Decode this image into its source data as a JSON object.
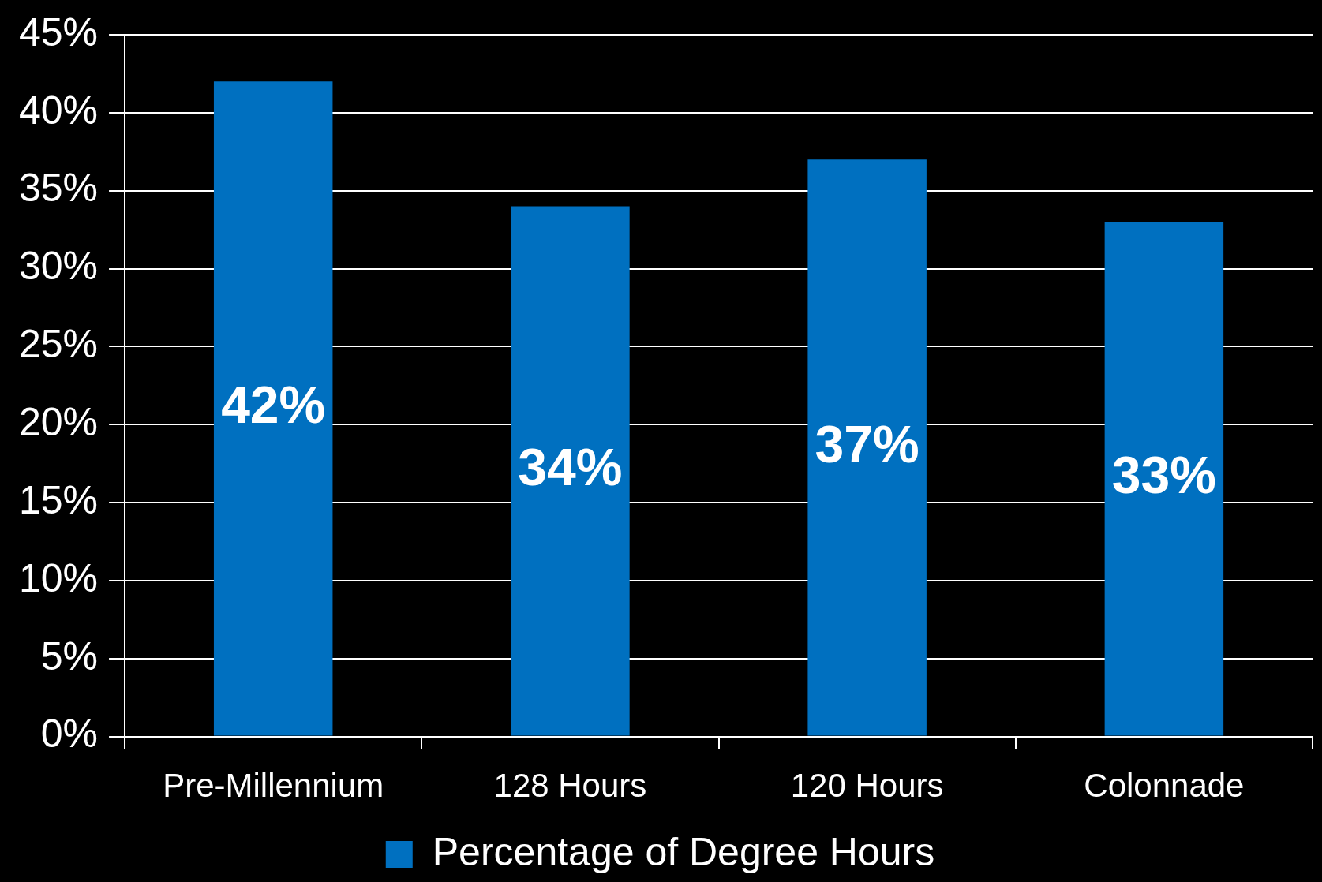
{
  "chart_data": {
    "type": "bar",
    "categories": [
      "Pre-Millennium",
      "128 Hours",
      "120 Hours",
      "Colonnade"
    ],
    "series": [
      {
        "name": "Percentage of Degree Hours",
        "color": "#0070c0",
        "values": [
          42,
          34,
          37,
          33
        ],
        "value_labels": [
          "42%",
          "34%",
          "37%",
          "33%"
        ]
      }
    ],
    "ylim": [
      0,
      45
    ],
    "yticks": [
      {
        "value": 0,
        "label": "0%"
      },
      {
        "value": 5,
        "label": "5%"
      },
      {
        "value": 10,
        "label": "10%"
      },
      {
        "value": 15,
        "label": "15%"
      },
      {
        "value": 20,
        "label": "20%"
      },
      {
        "value": 25,
        "label": "25%"
      },
      {
        "value": 30,
        "label": "30%"
      },
      {
        "value": 35,
        "label": "35%"
      },
      {
        "value": 40,
        "label": "40%"
      },
      {
        "value": 45,
        "label": "45%"
      }
    ],
    "grid": "y",
    "legend": "bottom"
  }
}
